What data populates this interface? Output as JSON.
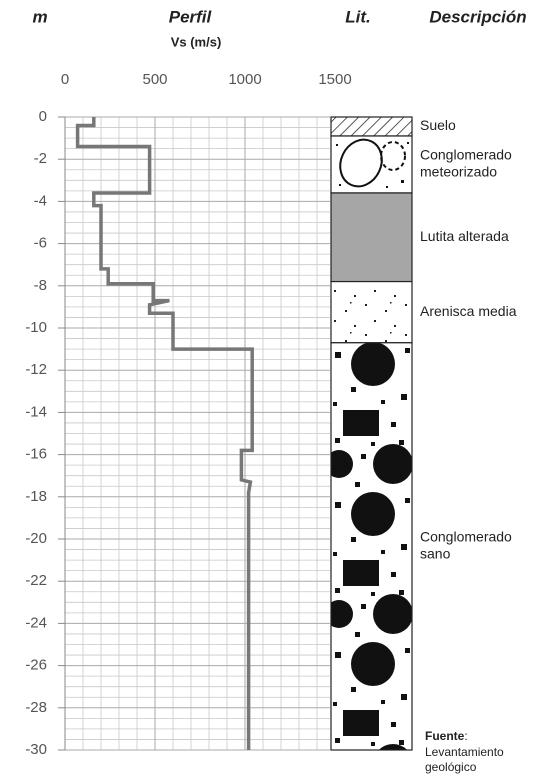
{
  "chart_data": {
    "type": "line",
    "depth_label": "m",
    "title": "Perfil",
    "xlabel": "Vs (m/s)",
    "lith_label": "Lit.",
    "desc_label": "Descripción",
    "x": [
      160,
      160,
      70,
      70,
      470,
      470,
      160,
      160,
      200,
      200,
      240,
      240,
      490,
      490,
      580,
      470,
      470,
      600,
      600,
      1040,
      1040,
      980,
      980,
      1030,
      1020,
      1020
    ],
    "y": [
      0,
      -0.4,
      -0.4,
      -1.4,
      -1.4,
      -3.6,
      -3.6,
      -4.2,
      -4.2,
      -7.2,
      -7.2,
      -7.9,
      -7.9,
      -8.7,
      -8.7,
      -8.9,
      -9.3,
      -9.3,
      -11,
      -11,
      -15.8,
      -15.8,
      -17.2,
      -17.3,
      -17.8,
      -30
    ],
    "color": "#777777",
    "xlim": [
      0,
      1500
    ],
    "xticks": [
      0,
      500,
      1000,
      1500
    ],
    "ylim": [
      0,
      -30
    ],
    "yticks": [
      0,
      -2,
      -4,
      -6,
      -8,
      -10,
      -12,
      -14,
      -16,
      -18,
      -20,
      -22,
      -24,
      -26,
      -28,
      -30
    ],
    "grid": true,
    "lithology": [
      {
        "lines": [
          "Suelo"
        ],
        "top": 0,
        "bottom": -0.9
      },
      {
        "lines": [
          "Conglomerado",
          "meteorizado"
        ],
        "top": -0.9,
        "bottom": -3.6
      },
      {
        "lines": [
          "Lutita alterada"
        ],
        "top": -3.6,
        "bottom": -7.8
      },
      {
        "lines": [
          "Arenisca media"
        ],
        "top": -7.8,
        "bottom": -10.7
      },
      {
        "lines": [
          "Conglomerado",
          "sano"
        ],
        "top": -10.7,
        "bottom": -30
      }
    ],
    "source": {
      "label": "Fuente",
      "rest": ":",
      "lines": [
        "Levantamiento",
        "geológico"
      ]
    }
  }
}
